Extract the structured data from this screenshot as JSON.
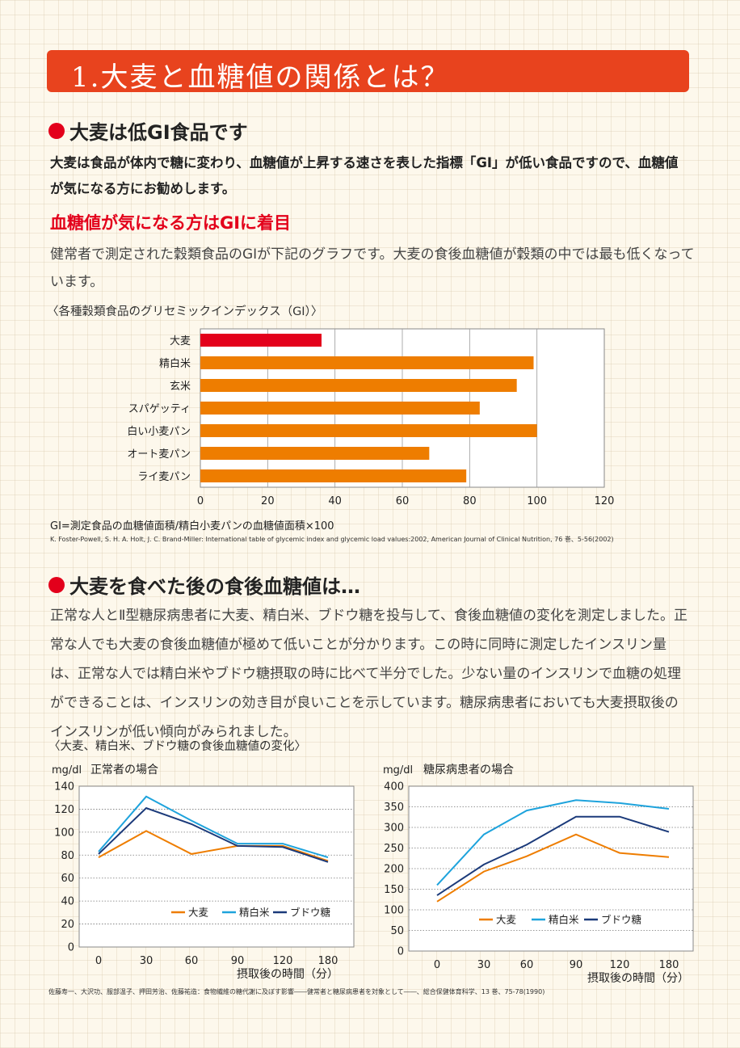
{
  "banner": {
    "title": "1.大麦と血糖値の関係とは？"
  },
  "section1": {
    "heading": "大麦は低GI食品です",
    "body": "大麦は食品が体内で糖に変わり、血糖値が上昇する速さを表した指標「GI」が低い食品ですので、血糖値が気になる方にお勧めします。",
    "subheading": "血糖値が気になる方はGIに着目",
    "body2": "健常者で測定された穀類食品のGIが下記のグラフです。大麦の食後血糖値が穀類の中では最も低くなっています。",
    "chart_caption": "〈各種穀類食品のグリセミックインデックス（GI）〉",
    "formula": "GI=測定食品の血糖値面積/精白小麦パンの血糖値面積×100",
    "reference": "K. Foster-Powell, S. H. A. Holt, J. C. Brand-Miller: International table of glycemic index and glycemic load values:2002, American Journal of Clinical Nutrition, 76 巻、5-56(2002)"
  },
  "section2": {
    "heading": "大麦を食べた後の食後血糖値は…",
    "body": "正常な人とⅡ型糖尿病患者に大麦、精白米、ブドウ糖を投与して、食後血糖値の変化を測定しました。正常な人でも大麦の食後血糖値が極めて低いことが分かります。この時に同時に測定したインスリン量は、正常な人では精白米やブドウ糖摂取の時に比べて半分でした。少ない量のインスリンで血糖の処理ができることは、インスリンの効き目が良いことを示しています。糖尿病患者においても大麦摂取後のインスリンが低い傾向がみられました。",
    "chart_caption": "〈大麦、精白米、ブドウ糖の食後血糖値の変化〉",
    "reference": "佐藤寿一、大沢功、服部温子、押田芳治、佐藤祐造：食物繊維の糖代謝に及ぼす影響――健常者と糖尿病患者を対象として――、総合保健体育科学、13 巻、75-78(1990)"
  },
  "colors": {
    "accent": "#e8431e",
    "red": "#e3001b",
    "orange": "#ee7d00",
    "sky": "#1ea3dc",
    "navy": "#1b3a7a"
  },
  "chart_data": [
    {
      "type": "bar",
      "orientation": "horizontal",
      "categories": [
        "大麦",
        "精白米",
        "玄米",
        "スパゲッティ",
        "白い小麦パン",
        "オート麦パン",
        "ライ麦パン"
      ],
      "values": [
        36,
        99,
        94,
        83,
        100,
        68,
        79
      ],
      "bar_colors": [
        "#e3001b",
        "#ee7d00",
        "#ee7d00",
        "#ee7d00",
        "#ee7d00",
        "#ee7d00",
        "#ee7d00"
      ],
      "xlim": [
        0,
        120
      ],
      "xticks": [
        0,
        20,
        40,
        60,
        80,
        100,
        120
      ],
      "grid": "vertical"
    },
    {
      "type": "line",
      "title": "正常者の場合",
      "ylabel": "mg/dl",
      "xlabel": "摂取後の時間（分）",
      "x": [
        0,
        30,
        60,
        90,
        120,
        180
      ],
      "ylim": [
        0,
        140
      ],
      "yticks": [
        0,
        20,
        40,
        60,
        80,
        100,
        120,
        140
      ],
      "series": [
        {
          "name": "大麦",
          "color": "#ee7d00",
          "values": [
            78,
            101,
            81,
            88,
            88,
            75
          ]
        },
        {
          "name": "精白米",
          "color": "#1ea3dc",
          "values": [
            83,
            131,
            110,
            90,
            90,
            78
          ]
        },
        {
          "name": "ブドウ糖",
          "color": "#1b3a7a",
          "values": [
            81,
            121,
            107,
            88,
            87,
            74
          ]
        }
      ],
      "legend": "bottom-right",
      "grid": "horizontal-dotted"
    },
    {
      "type": "line",
      "title": "糖尿病患者の場合",
      "ylabel": "mg/dl",
      "xlabel": "摂取後の時間（分）",
      "x": [
        0,
        30,
        60,
        90,
        120,
        180
      ],
      "ylim": [
        0,
        400
      ],
      "yticks": [
        0,
        50,
        100,
        150,
        200,
        250,
        300,
        350,
        400
      ],
      "series": [
        {
          "name": "大麦",
          "color": "#ee7d00",
          "values": [
            120,
            193,
            230,
            283,
            238,
            228
          ]
        },
        {
          "name": "精白米",
          "color": "#1ea3dc",
          "values": [
            160,
            283,
            341,
            366,
            359,
            345
          ]
        },
        {
          "name": "ブドウ糖",
          "color": "#1b3a7a",
          "values": [
            135,
            210,
            258,
            326,
            326,
            289
          ]
        }
      ],
      "legend": "bottom-right",
      "grid": "horizontal-dotted"
    }
  ]
}
